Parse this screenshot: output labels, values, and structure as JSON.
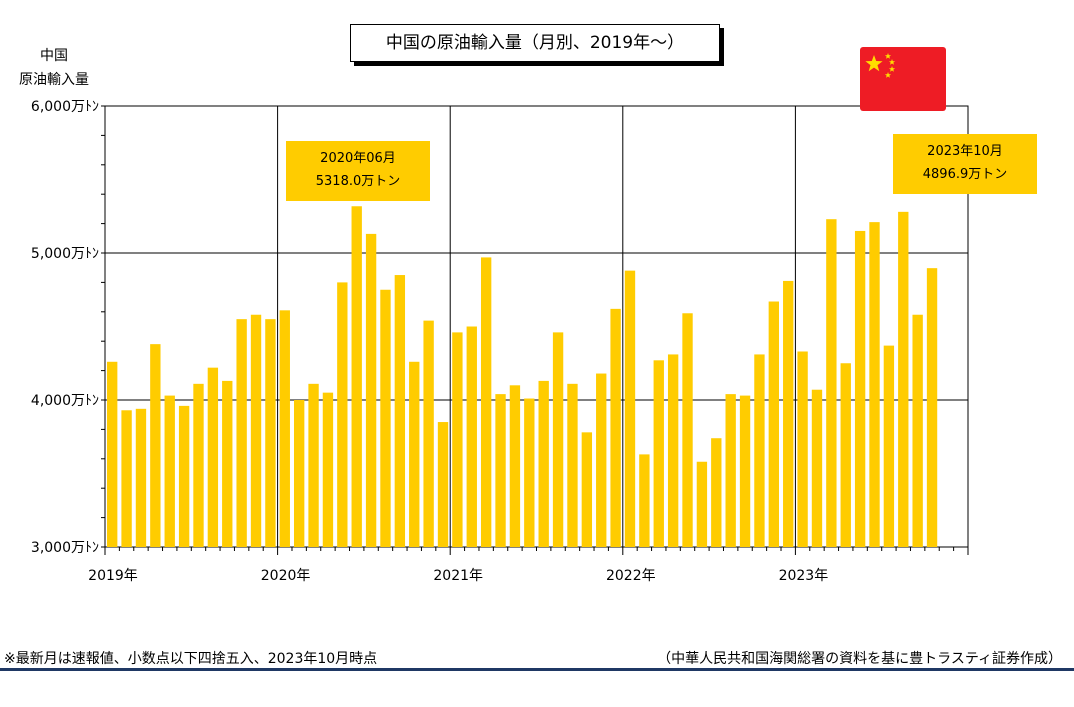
{
  "title": "中国の原油輸入量（月別、2019年～）",
  "ylabel_lines": [
    "中国",
    "原油輸入量"
  ],
  "callouts": [
    {
      "line1": "2020年06月",
      "line2": "5318.0万トン"
    },
    {
      "line1": "2023年10月",
      "line2": "4896.9万トン"
    }
  ],
  "footer": {
    "note": "※最新月は速報値、小数点以下四捨五入、2023年10月時点",
    "source": "（中華人民共和国海関総署の資料を基に豊トラスティ証券作成）"
  },
  "flag": {
    "name": "china-flag",
    "colors": {
      "red": "#ee1c25",
      "star": "#ffde00"
    }
  },
  "chart_data": {
    "type": "bar",
    "bar_color": "#ffcc00",
    "ylim": [
      3000,
      6000
    ],
    "ytick_values": [
      3000,
      4000,
      5000,
      6000
    ],
    "ytick_labels": [
      "3,000万ﾄﾝ",
      "4,000万ﾄﾝ",
      "5,000万ﾄﾝ",
      "6,000万ﾄﾝ"
    ],
    "year_labels": [
      "2019年",
      "2020年",
      "2021年",
      "2022年",
      "2023年"
    ],
    "x_periods": 60,
    "grid": true,
    "values": [
      4260,
      3930,
      3940,
      4380,
      4030,
      3960,
      4110,
      4220,
      4130,
      4550,
      4580,
      4550,
      4610,
      4000,
      4110,
      4050,
      4800,
      5318,
      5130,
      4750,
      4850,
      4260,
      4540,
      3850,
      4460,
      4500,
      4970,
      4040,
      4100,
      4010,
      4130,
      4460,
      4110,
      3780,
      4180,
      4620,
      4880,
      3630,
      4270,
      4310,
      4590,
      3580,
      3740,
      4040,
      4030,
      4310,
      4670,
      4810,
      4330,
      4070,
      5230,
      4250,
      5150,
      5210,
      4370,
      5280,
      4580,
      4896.9
    ]
  }
}
